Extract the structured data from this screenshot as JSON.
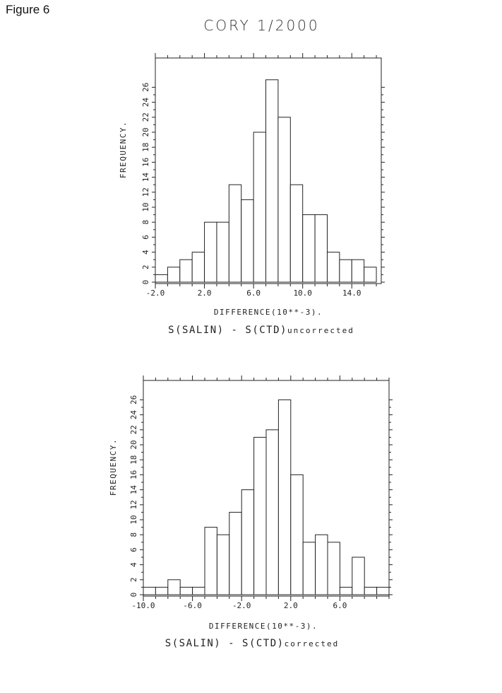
{
  "figure_label": "Figure 6",
  "title": "CORY 1/2000",
  "chart_data": [
    {
      "type": "bar",
      "histogram": true,
      "title": "CORY 1/2000",
      "xlabel": "DIFFERENCE(10**-3).",
      "ylabel": "FREQUENCY.",
      "caption_main": "S(SALIN)  -  S(CTD)",
      "caption_suffix": "uncorrected",
      "xlim": [
        -2.0,
        16.4
      ],
      "ylim": [
        0,
        28
      ],
      "bin_width": 1.0,
      "bin_starts": [
        -2.0,
        -1.0,
        0.0,
        1.0,
        2.0,
        3.0,
        4.0,
        5.0,
        6.0,
        7.0,
        8.0,
        9.0,
        10.0,
        11.0,
        12.0,
        13.0,
        14.0,
        15.0
      ],
      "values": [
        1,
        2,
        3,
        4,
        8,
        8,
        13,
        11,
        20,
        27,
        22,
        13,
        9,
        9,
        4,
        3,
        3,
        2
      ],
      "x_ticks": [
        {
          "value": -2.0,
          "label": "-2.0"
        },
        {
          "value": 2.0,
          "label": "2.0"
        },
        {
          "value": 6.0,
          "label": "6.0"
        },
        {
          "value": 10.0,
          "label": "10.0"
        },
        {
          "value": 14.0,
          "label": "14.0"
        }
      ],
      "y_ticks": [
        0,
        2,
        4,
        6,
        8,
        10,
        12,
        14,
        16,
        18,
        20,
        22,
        24,
        26
      ]
    },
    {
      "type": "bar",
      "histogram": true,
      "xlabel": "DIFFERENCE(10**-3).",
      "ylabel": "FREQUENCY.",
      "caption_main": "S(SALIN)  -  S(CTD)",
      "caption_suffix": "corrected",
      "xlim": [
        -10.0,
        10.0
      ],
      "ylim": [
        0,
        28
      ],
      "bin_width": 1.0,
      "bin_starts": [
        -10.0,
        -9.0,
        -8.0,
        -7.0,
        -6.0,
        -5.0,
        -4.0,
        -3.0,
        -2.0,
        -1.0,
        0.0,
        1.0,
        2.0,
        3.0,
        4.0,
        5.0,
        6.0,
        7.0,
        8.0,
        9.0
      ],
      "values": [
        1,
        1,
        2,
        1,
        1,
        9,
        8,
        11,
        14,
        21,
        22,
        26,
        16,
        7,
        8,
        7,
        1,
        5,
        1,
        1
      ],
      "x_ticks": [
        {
          "value": -10.0,
          "label": "-10.0"
        },
        {
          "value": -6.0,
          "label": "-6.0"
        },
        {
          "value": -2.0,
          "label": "-2.0"
        },
        {
          "value": 2.0,
          "label": "2.0"
        },
        {
          "value": 6.0,
          "label": "6.0"
        }
      ],
      "y_ticks": [
        0,
        2,
        4,
        6,
        8,
        10,
        12,
        14,
        16,
        18,
        20,
        22,
        24,
        26
      ]
    }
  ]
}
